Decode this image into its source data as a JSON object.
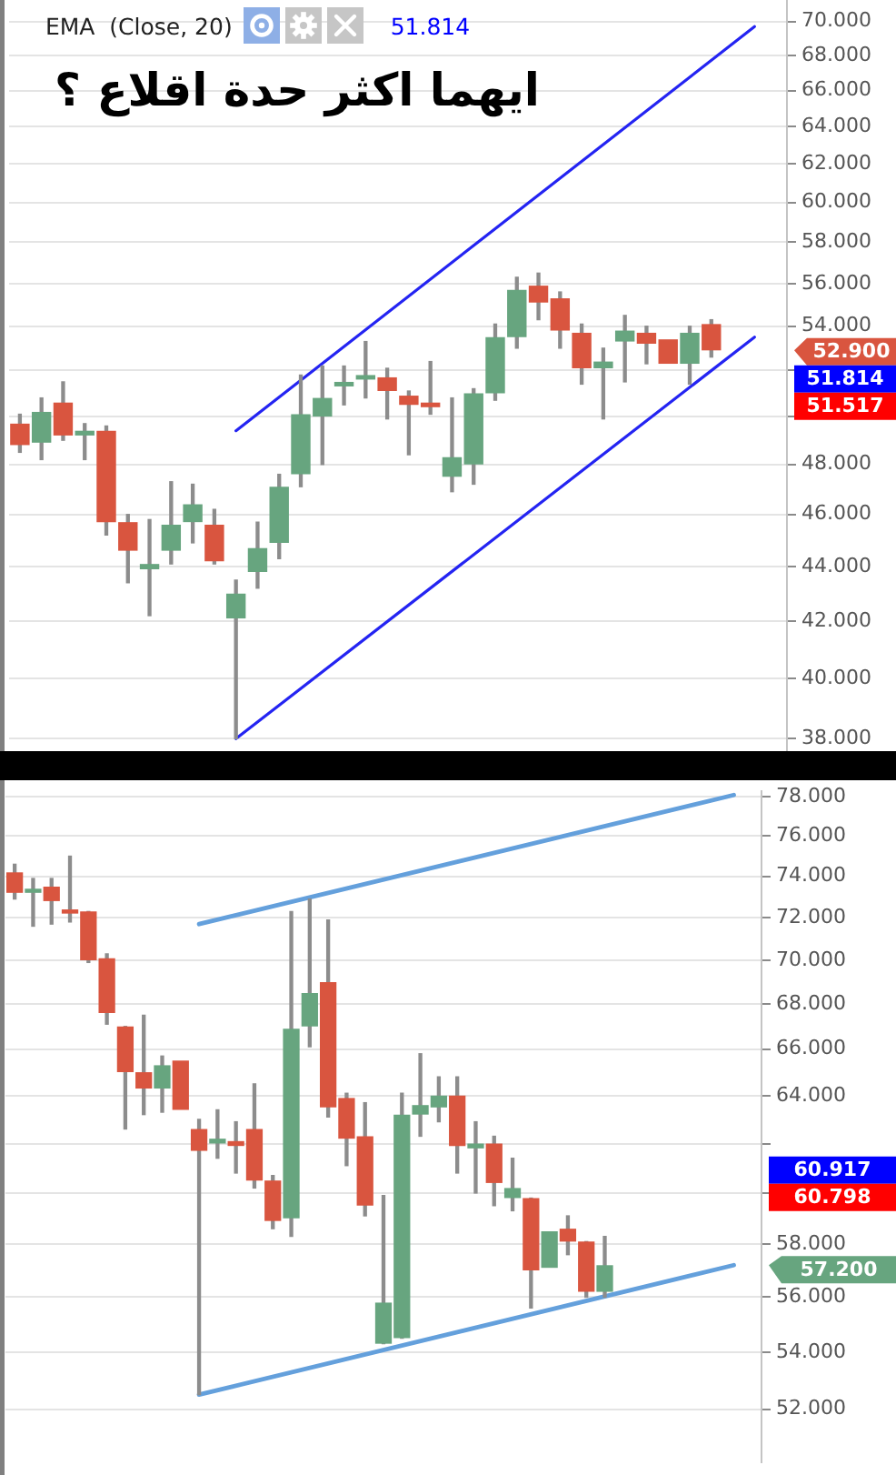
{
  "chart_data": [
    {
      "type": "candlestick",
      "title": "ايهما اكثر حدة اقلاع ؟",
      "annotations": [
        "EMA  (Close, 20)",
        "51.814",
        "52.900",
        "51.814",
        "51.517"
      ],
      "categories": [
        null,
        null,
        null,
        null,
        null,
        null,
        null,
        null,
        null,
        null,
        null,
        null,
        null,
        null,
        null,
        null,
        null,
        null,
        null,
        null,
        null,
        null,
        null,
        null,
        null,
        null,
        null,
        null,
        null,
        null,
        null,
        null,
        null,
        null,
        null,
        null
      ],
      "ohlc": [
        [
          49.7,
          50.1,
          48.5,
          48.8
        ],
        [
          48.9,
          50.8,
          48.2,
          50.2
        ],
        [
          50.6,
          51.5,
          49.0,
          49.2
        ],
        [
          49.2,
          49.7,
          48.2,
          49.4
        ],
        [
          49.4,
          49.6,
          45.2,
          45.7
        ],
        [
          45.7,
          46.0,
          43.4,
          44.6
        ],
        [
          43.9,
          45.8,
          42.2,
          44.1
        ],
        [
          44.6,
          47.3,
          44.1,
          45.6
        ],
        [
          45.7,
          47.2,
          44.9,
          46.4
        ],
        [
          45.6,
          46.2,
          44.1,
          44.2
        ],
        [
          42.1,
          43.5,
          38.0,
          43.0
        ],
        [
          43.8,
          45.7,
          43.2,
          44.7
        ],
        [
          44.9,
          47.6,
          44.3,
          47.1
        ],
        [
          47.6,
          51.8,
          47.1,
          50.1
        ],
        [
          50.0,
          52.2,
          48.0,
          50.8
        ],
        [
          51.3,
          52.2,
          50.5,
          51.5
        ],
        [
          51.6,
          53.3,
          50.8,
          51.8
        ],
        [
          51.7,
          52.1,
          49.9,
          51.1
        ],
        [
          50.9,
          51.1,
          48.4,
          50.5
        ],
        [
          50.6,
          52.4,
          50.1,
          50.4
        ],
        [
          47.5,
          50.8,
          46.9,
          48.3
        ],
        [
          48.0,
          51.2,
          47.2,
          51.0
        ],
        [
          51.0,
          54.1,
          50.7,
          53.5
        ],
        [
          53.5,
          56.3,
          53.0,
          55.7
        ],
        [
          55.9,
          56.5,
          54.3,
          55.1
        ],
        [
          55.3,
          55.6,
          53.0,
          53.8
        ],
        [
          53.7,
          54.1,
          51.4,
          52.1
        ],
        [
          52.1,
          53.0,
          49.9,
          52.4
        ],
        [
          53.3,
          54.5,
          51.5,
          53.8
        ],
        [
          53.7,
          54.0,
          52.3,
          53.2
        ],
        [
          53.4,
          53.4,
          52.3,
          52.3
        ],
        [
          52.3,
          54.0,
          51.4,
          53.7
        ],
        [
          54.1,
          54.3,
          52.6,
          52.9
        ],
        null,
        null,
        null
      ],
      "colors": [
        "#d9553f",
        "#67a57f",
        "#d9553f",
        "#67a57f",
        "#d9553f",
        "#d9553f",
        "#67a57f",
        "#67a57f",
        "#67a57f",
        "#d9553f",
        "#67a57f",
        "#67a57f",
        "#67a57f",
        "#67a57f",
        "#67a57f",
        "#67a57f",
        "#67a57f",
        "#d9553f",
        "#d9553f",
        "#d9553f",
        "#67a57f",
        "#67a57f",
        "#67a57f",
        "#67a57f",
        "#d9553f",
        "#d9553f",
        "#d9553f",
        "#67a57f",
        "#67a57f",
        "#d9553f",
        "#d9553f",
        "#67a57f",
        "#d9553f",
        null,
        null,
        null
      ],
      "series": [
        {
          "type": "line",
          "color": "#2424f2",
          "values": [
            null,
            null,
            null,
            null,
            null,
            null,
            null,
            null,
            null,
            null,
            49.4,
            null,
            null,
            null,
            null,
            null,
            null,
            null,
            null,
            null,
            null,
            null,
            null,
            null,
            null,
            null,
            null,
            null,
            null,
            null,
            null,
            null,
            null,
            null,
            69.7,
            null
          ]
        },
        {
          "type": "line",
          "color": "#2424f2",
          "values": [
            null,
            null,
            null,
            null,
            null,
            null,
            null,
            null,
            null,
            null,
            38.0,
            null,
            null,
            null,
            null,
            null,
            null,
            null,
            null,
            null,
            null,
            null,
            null,
            null,
            null,
            null,
            null,
            null,
            null,
            null,
            null,
            null,
            null,
            null,
            53.5,
            null
          ]
        }
      ],
      "log": true,
      "ylim": [
        37.6,
        71.3
      ],
      "yticks": [
        {
          "value": 38,
          "label": "38.000"
        },
        {
          "value": 40,
          "label": "40.000"
        },
        {
          "value": 42,
          "label": "42.000"
        },
        {
          "value": 44,
          "label": "44.000"
        },
        {
          "value": 46,
          "label": "46.000"
        },
        {
          "value": 48,
          "label": "48.000"
        },
        {
          "value": 50,
          "label": null
        },
        {
          "value": 52,
          "label": null
        },
        {
          "value": 54,
          "label": "54.000"
        },
        {
          "value": 56,
          "label": "56.000"
        },
        {
          "value": 58,
          "label": "58.000"
        },
        {
          "value": 60,
          "label": "60.000"
        },
        {
          "value": 62,
          "label": "62.000"
        },
        {
          "value": 64,
          "label": "64.000"
        },
        {
          "value": 66,
          "label": "66.000"
        },
        {
          "value": 68,
          "label": "68.000"
        },
        {
          "value": 70,
          "label": "70.000"
        }
      ],
      "grid": "y",
      "tick_labels": "y"
    },
    {
      "type": "candlestick",
      "annotations": [
        "57.200",
        "60.917",
        "60.798"
      ],
      "categories": [
        null,
        null,
        null,
        null,
        null,
        null,
        null,
        null,
        null,
        null,
        null,
        null,
        null,
        null,
        null,
        null,
        null,
        null,
        null,
        null,
        null,
        null,
        null,
        null,
        null,
        null,
        null,
        null,
        null,
        null,
        null,
        null,
        null,
        null,
        null,
        null,
        null,
        null,
        null,
        null,
        null
      ],
      "ohlc": [
        [
          74.2,
          74.6,
          72.9,
          73.2
        ],
        [
          73.2,
          73.9,
          71.6,
          73.4
        ],
        [
          73.5,
          73.9,
          71.7,
          72.8
        ],
        [
          72.4,
          75.0,
          71.8,
          72.2
        ],
        [
          72.3,
          72.3,
          69.9,
          70.0
        ],
        [
          70.1,
          70.3,
          67.1,
          67.6
        ],
        [
          67.0,
          67.0,
          62.6,
          65.0
        ],
        [
          65.0,
          67.5,
          63.2,
          64.3
        ],
        [
          64.3,
          65.7,
          63.3,
          65.3
        ],
        [
          65.5,
          65.5,
          63.4,
          63.4
        ],
        [
          62.6,
          63.0,
          52.5,
          61.7
        ],
        [
          62.0,
          63.4,
          61.4,
          62.2
        ],
        [
          62.1,
          62.9,
          60.8,
          61.9
        ],
        [
          62.6,
          64.5,
          60.2,
          60.5
        ],
        [
          60.5,
          60.7,
          58.6,
          58.9
        ],
        [
          59.0,
          72.3,
          58.3,
          66.9
        ],
        [
          67.0,
          72.9,
          66.1,
          68.5
        ],
        [
          69.0,
          71.9,
          63.1,
          63.5
        ],
        [
          63.9,
          64.1,
          61.1,
          62.2
        ],
        [
          62.3,
          63.7,
          59.1,
          59.5
        ],
        [
          54.3,
          59.9,
          54.3,
          55.8
        ],
        [
          54.5,
          64.1,
          54.5,
          63.2
        ],
        [
          63.2,
          65.8,
          62.3,
          63.6
        ],
        [
          63.5,
          64.8,
          62.9,
          64.0
        ],
        [
          64.0,
          64.8,
          60.8,
          61.9
        ],
        [
          61.8,
          62.9,
          60.0,
          62.0
        ],
        [
          62.0,
          62.3,
          59.5,
          60.4
        ],
        [
          59.8,
          61.4,
          59.3,
          60.2
        ],
        [
          59.8,
          59.8,
          55.6,
          57.0
        ],
        [
          57.1,
          58.5,
          57.1,
          58.5
        ],
        [
          58.6,
          59.1,
          57.6,
          58.1
        ],
        [
          58.1,
          58.1,
          56.0,
          56.2
        ],
        [
          56.2,
          58.3,
          56.0,
          57.2
        ],
        null,
        null,
        null,
        null,
        null,
        null,
        null,
        null
      ],
      "colors": [
        "#d9553f",
        "#67a57f",
        "#d9553f",
        "#d9553f",
        "#d9553f",
        "#d9553f",
        "#d9553f",
        "#d9553f",
        "#67a57f",
        "#d9553f",
        "#d9553f",
        "#67a57f",
        "#d9553f",
        "#d9553f",
        "#d9553f",
        "#67a57f",
        "#67a57f",
        "#d9553f",
        "#d9553f",
        "#d9553f",
        "#67a57f",
        "#67a57f",
        "#67a57f",
        "#67a57f",
        "#d9553f",
        "#67a57f",
        "#d9553f",
        "#67a57f",
        "#d9553f",
        "#67a57f",
        "#d9553f",
        "#d9553f",
        "#67a57f",
        null,
        null,
        null,
        null,
        null,
        null,
        null,
        null
      ],
      "series": [
        {
          "type": "line",
          "color": "#64a0dc",
          "values": [
            null,
            null,
            null,
            null,
            null,
            null,
            null,
            null,
            null,
            null,
            71.7,
            null,
            null,
            null,
            null,
            null,
            null,
            null,
            null,
            null,
            null,
            null,
            null,
            null,
            null,
            null,
            null,
            null,
            null,
            null,
            null,
            null,
            null,
            null,
            null,
            null,
            null,
            null,
            null,
            78.1,
            null
          ]
        },
        {
          "type": "line",
          "color": "#64a0dc",
          "values": [
            null,
            null,
            null,
            null,
            null,
            null,
            null,
            null,
            null,
            null,
            52.5,
            null,
            null,
            null,
            null,
            null,
            null,
            null,
            null,
            null,
            null,
            null,
            null,
            null,
            null,
            null,
            null,
            null,
            null,
            null,
            null,
            null,
            null,
            null,
            null,
            null,
            null,
            null,
            null,
            57.2,
            null
          ]
        }
      ],
      "log": true,
      "ylim": [
        50.2,
        78.3
      ],
      "yticks": [
        {
          "value": 52,
          "label": "52.000"
        },
        {
          "value": 54,
          "label": "54.000"
        },
        {
          "value": 56,
          "label": "56.000"
        },
        {
          "value": 58,
          "label": "58.000"
        },
        {
          "value": 60,
          "label": null
        },
        {
          "value": 62,
          "label": null
        },
        {
          "value": 64,
          "label": "64.000"
        },
        {
          "value": 66,
          "label": "66.000"
        },
        {
          "value": 68,
          "label": "68.000"
        },
        {
          "value": 70,
          "label": "70.000"
        },
        {
          "value": 72,
          "label": "72.000"
        },
        {
          "value": 74,
          "label": "74.000"
        },
        {
          "value": 76,
          "label": "76.000"
        },
        {
          "value": 78,
          "label": "78.000"
        }
      ],
      "grid": "y",
      "tick_labels": "y"
    }
  ]
}
